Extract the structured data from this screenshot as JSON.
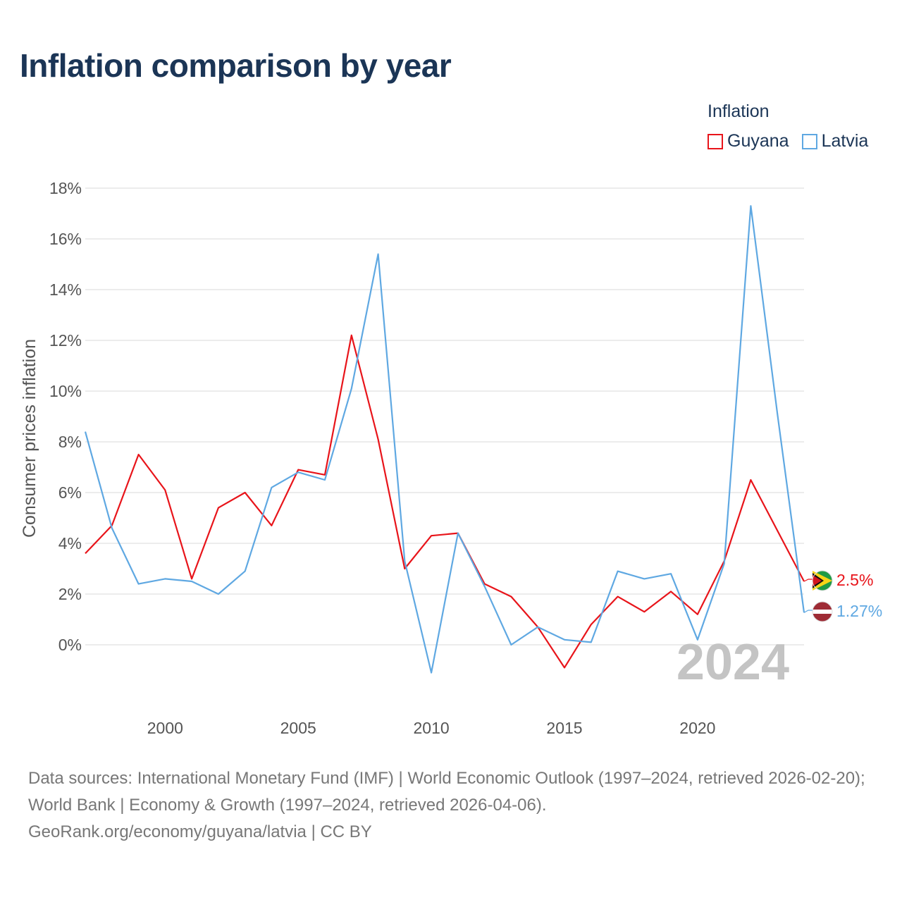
{
  "title": "Inflation comparison by year",
  "legend": {
    "title": "Inflation",
    "items": [
      {
        "name": "Guyana",
        "color": "#e8141a"
      },
      {
        "name": "Latvia",
        "color": "#5fa8e2"
      }
    ]
  },
  "source": {
    "line1": "Data sources: International Monetary Fund (IMF) | World Economic Outlook (1997–2024, retrieved 2026-02-20); World Bank | Economy & Growth (1997–2024, retrieved 2026-04-06).",
    "line2": "GeoRank.org/economy/guyana/latvia | CC BY"
  },
  "chart_data": {
    "type": "line",
    "ylabel": "Consumer prices inflation",
    "ylim": [
      -2.6,
      18
    ],
    "xlim": [
      1997,
      2024
    ],
    "y_ticks": [
      0,
      2,
      4,
      6,
      8,
      10,
      12,
      14,
      16,
      18
    ],
    "y_tick_labels": [
      "0%",
      "2%",
      "4%",
      "6%",
      "8%",
      "10%",
      "12%",
      "14%",
      "16%",
      "18%"
    ],
    "x_ticks": [
      2000,
      2005,
      2010,
      2015,
      2020
    ],
    "x_tick_labels": [
      "2000",
      "2005",
      "2010",
      "2015",
      "2020"
    ],
    "grid": "horizontal",
    "year_mark": "2024",
    "x": [
      1997,
      1998,
      1999,
      2000,
      2001,
      2002,
      2003,
      2004,
      2005,
      2006,
      2007,
      2008,
      2009,
      2010,
      2011,
      2012,
      2013,
      2014,
      2015,
      2016,
      2017,
      2018,
      2019,
      2020,
      2021,
      2022,
      2023,
      2024
    ],
    "series": [
      {
        "name": "Guyana",
        "color": "#e8141a",
        "values": [
          3.6,
          4.7,
          7.5,
          6.1,
          2.6,
          5.4,
          6.0,
          4.7,
          6.9,
          6.7,
          12.2,
          8.1,
          3.0,
          4.3,
          4.4,
          2.4,
          1.9,
          0.7,
          -0.9,
          0.8,
          1.9,
          1.3,
          2.1,
          1.2,
          3.3,
          6.5,
          4.5,
          2.5
        ],
        "end_label": "2.5%"
      },
      {
        "name": "Latvia",
        "color": "#5fa8e2",
        "values": [
          8.4,
          4.6,
          2.4,
          2.6,
          2.5,
          2.0,
          2.9,
          6.2,
          6.8,
          6.5,
          10.1,
          15.4,
          3.3,
          -1.1,
          4.4,
          2.3,
          0.0,
          0.7,
          0.2,
          0.1,
          2.9,
          2.6,
          2.8,
          0.2,
          3.2,
          17.3,
          9.1,
          1.27
        ],
        "end_label": "1.27%"
      }
    ]
  }
}
